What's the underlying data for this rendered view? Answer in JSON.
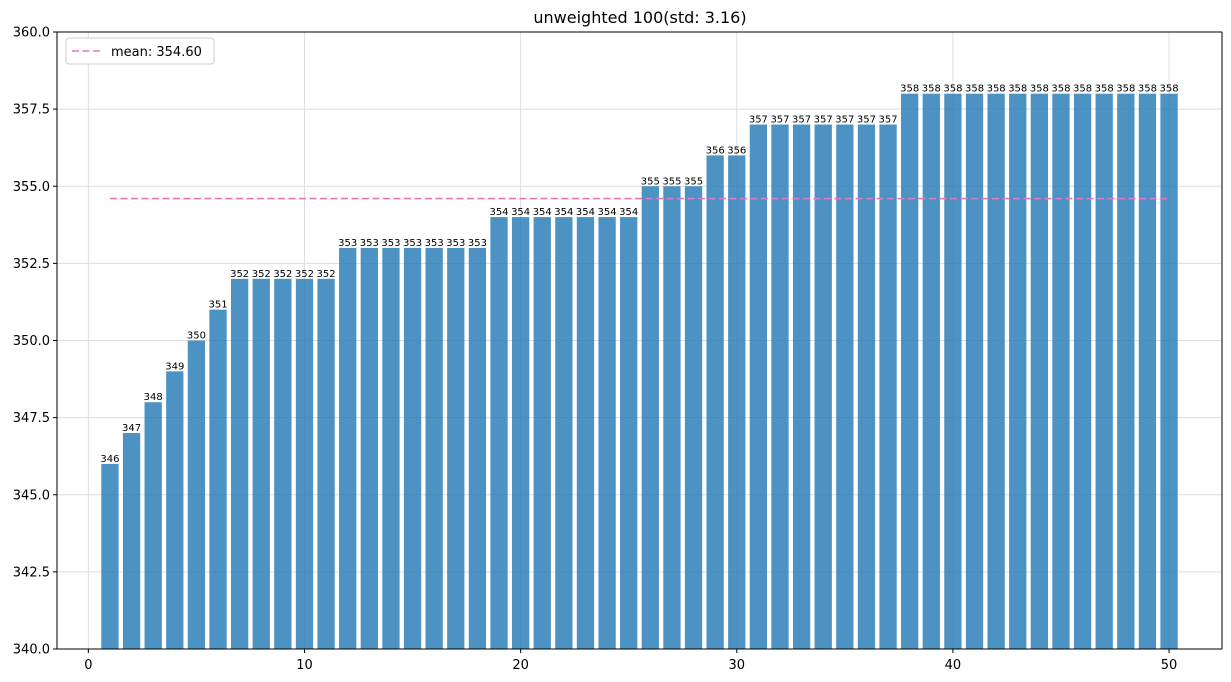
{
  "chart_data": {
    "type": "bar",
    "title": "unweighted 100(std: 3.16)",
    "xlabel": "",
    "ylabel": "",
    "xlim": [
      -1.45,
      52.45
    ],
    "ylim": [
      340.0,
      360.0
    ],
    "grid": true,
    "legend_position": "top-left",
    "x": [
      1,
      2,
      3,
      4,
      5,
      6,
      7,
      8,
      9,
      10,
      11,
      12,
      13,
      14,
      15,
      16,
      17,
      18,
      19,
      20,
      21,
      22,
      23,
      24,
      25,
      26,
      27,
      28,
      29,
      30,
      31,
      32,
      33,
      34,
      35,
      36,
      37,
      38,
      39,
      40,
      41,
      42,
      43,
      44,
      45,
      46,
      47,
      48,
      49,
      50
    ],
    "values": [
      346,
      347,
      348,
      349,
      350,
      351,
      352,
      352,
      352,
      352,
      352,
      353,
      353,
      353,
      353,
      353,
      353,
      353,
      354,
      354,
      354,
      354,
      354,
      354,
      354,
      355,
      355,
      355,
      356,
      356,
      357,
      357,
      357,
      357,
      357,
      357,
      357,
      358,
      358,
      358,
      358,
      358,
      358,
      358,
      358,
      358,
      358,
      358,
      358,
      358
    ],
    "x_ticks": [
      0,
      10,
      20,
      30,
      40,
      50
    ],
    "x_tick_labels": [
      "0",
      "10",
      "20",
      "30",
      "40",
      "50"
    ],
    "y_ticks": [
      340.0,
      342.5,
      345.0,
      347.5,
      350.0,
      352.5,
      355.0,
      357.5,
      360.0
    ],
    "y_tick_labels": [
      "340.0",
      "342.5",
      "345.0",
      "347.5",
      "350.0",
      "352.5",
      "355.0",
      "357.5",
      "360.0"
    ],
    "mean_line": {
      "label": "mean: 354.60",
      "value": 354.6,
      "x_range": [
        1,
        50
      ]
    },
    "colors": {
      "bar": "#1f77b4",
      "mean_line": "#e377c2"
    }
  }
}
